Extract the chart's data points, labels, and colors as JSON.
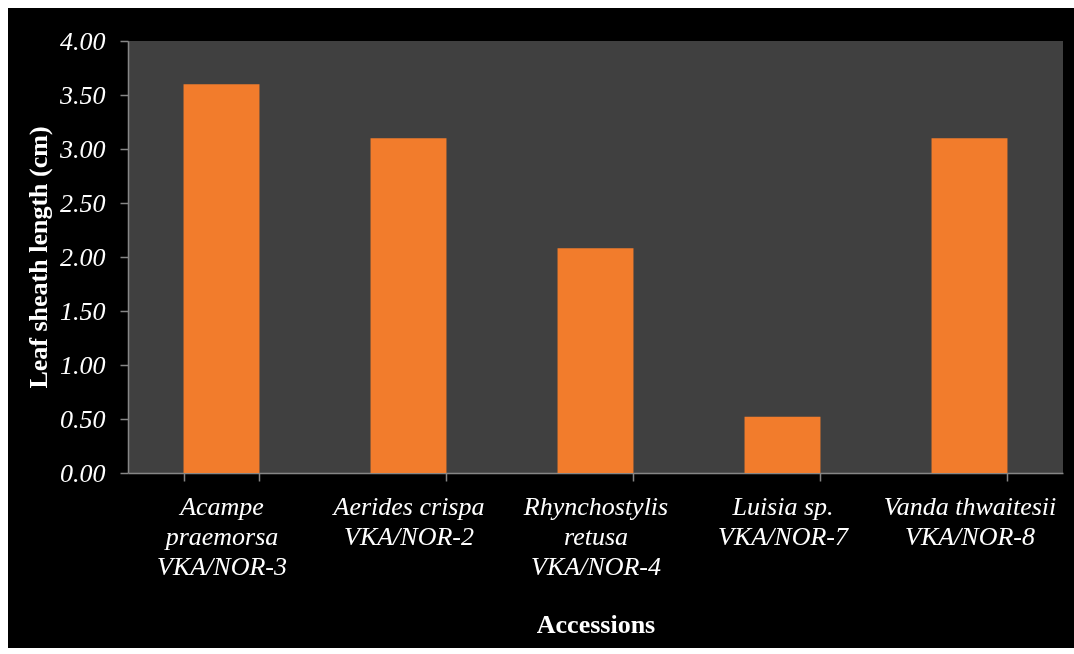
{
  "chart_data": {
    "type": "bar",
    "xlabel": "Accessions",
    "ylabel": "Leaf sheath length (cm)",
    "categories": [
      "Acampe praemorsa VKA/NOR-3",
      "Aerides crispa VKA/NOR-2",
      "Rhynchostylis retusa VKA/NOR-4",
      "Luisia sp. VKA/NOR-7",
      "Vanda thwaitesii VKA/NOR-8"
    ],
    "values": [
      3.6,
      3.1,
      2.08,
      0.52,
      3.1
    ],
    "color": "#f27c2c",
    "ylim": [
      0,
      4
    ],
    "yticks": [
      {
        "value": 0,
        "label": "0.00"
      },
      {
        "value": 0.5,
        "label": "0.50"
      },
      {
        "value": 1,
        "label": "1.00"
      },
      {
        "value": 1.5,
        "label": "1.50"
      },
      {
        "value": 2,
        "label": "2.00"
      },
      {
        "value": 2.5,
        "label": "2.50"
      },
      {
        "value": 3,
        "label": "3.00"
      },
      {
        "value": 3.5,
        "label": "3.50"
      },
      {
        "value": 4,
        "label": "4.00"
      }
    ]
  }
}
